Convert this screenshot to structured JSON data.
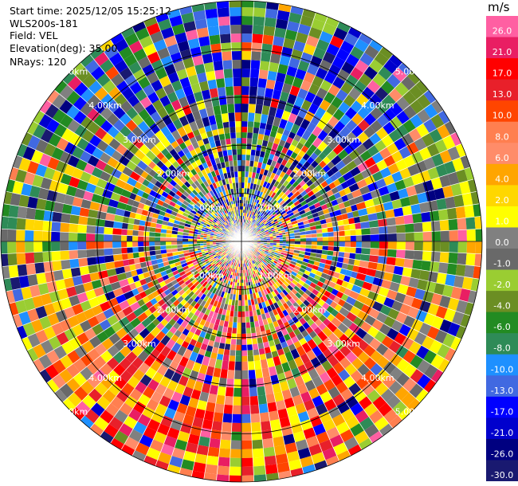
{
  "header": {
    "start_time": "Start time: 2025/12/05 15:25:12",
    "instrument": "WLS200s-181",
    "field": "Field: VEL",
    "elevation": "Elevation(deg): 35.00",
    "nrays": "NRays: 120"
  },
  "colorbar": {
    "unit": "m/s",
    "ticks": [
      "26.0",
      "21.0",
      "17.0",
      "13.0",
      "10.0",
      "8.0",
      "6.0",
      "4.0",
      "2.0",
      "1.0",
      "0.0",
      "-1.0",
      "-2.0",
      "-4.0",
      "-6.0",
      "-8.0",
      "-10.0",
      "-13.0",
      "-17.0",
      "-21.0",
      "-26.0",
      "-30.0"
    ],
    "colors": [
      "#ff5fa2",
      "#e91e63",
      "#ff0000",
      "#e8202a",
      "#ff4500",
      "#ff7f50",
      "#ff8c69",
      "#ffa500",
      "#ffd700",
      "#ffff00",
      "#808080",
      "#696969",
      "#9acd32",
      "#6b8e23",
      "#228b22",
      "#2e8b57",
      "#1e90ff",
      "#4169e1",
      "#0000ff",
      "#0000cd",
      "#000080",
      "#191970"
    ]
  },
  "chart_data": {
    "type": "heatmap",
    "projection": "polar PPI scan",
    "field": "VEL",
    "units": "m/s",
    "nrays": 120,
    "value_range": [
      -30,
      28
    ],
    "range_rings_km": [
      1.0,
      2.0,
      3.0,
      4.0,
      5.0
    ],
    "range_labels": [
      "1.00km",
      "2.00km",
      "3.00km",
      "4.00km",
      "5.00km"
    ],
    "gate_data": "randomized"
  }
}
